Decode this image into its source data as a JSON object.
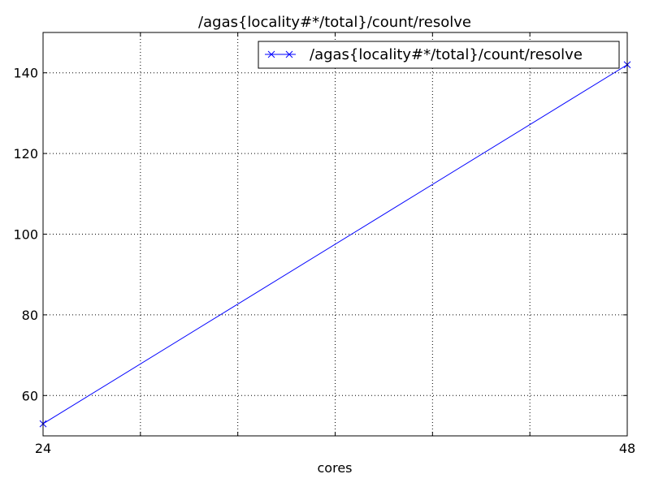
{
  "chart_data": {
    "type": "line",
    "title": "/agas{locality#*/total}/count/resolve",
    "xlabel": "cores",
    "ylabel": "",
    "xlim": [
      24,
      48
    ],
    "ylim": [
      50,
      150
    ],
    "x_ticks": [
      24,
      48
    ],
    "y_ticks": [
      60,
      80,
      100,
      120,
      140
    ],
    "grid": true,
    "legend_position": "top-right",
    "series": [
      {
        "name": "/agas{locality#*/total}/count/resolve",
        "color": "#0000ff",
        "marker": "x",
        "x": [
          24,
          48
        ],
        "y": [
          53,
          142
        ]
      }
    ]
  }
}
